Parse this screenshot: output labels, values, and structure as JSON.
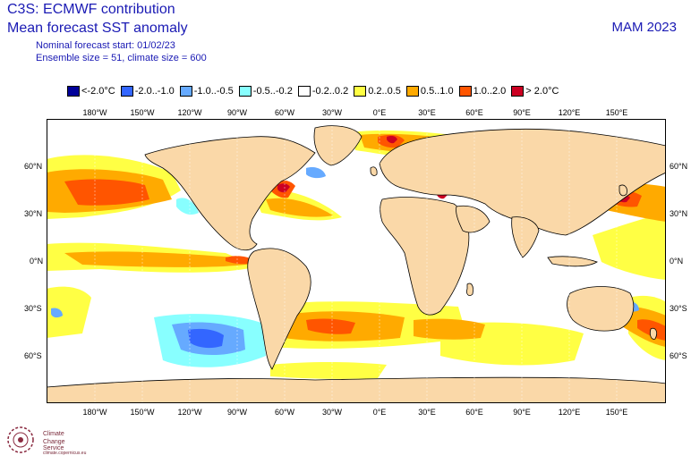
{
  "header": {
    "title": "C3S: ECMWF contribution",
    "subtitle": "Mean forecast SST anomaly",
    "start_line": "Nominal forecast start: 01/02/23",
    "ensemble_line": "Ensemble size = 51, climate size = 600",
    "season": "MAM 2023"
  },
  "legend": [
    {
      "label": "<-2.0°C",
      "color": "#000099"
    },
    {
      "label": "-2.0..-1.0",
      "color": "#3366ff"
    },
    {
      "label": "-1.0..-0.5",
      "color": "#66aaff"
    },
    {
      "label": "-0.5..-0.2",
      "color": "#88ffff"
    },
    {
      "label": "-0.2..0.2",
      "color": "#ffffff"
    },
    {
      "label": "0.2..0.5",
      "color": "#ffff44"
    },
    {
      "label": "0.5..1.0",
      "color": "#ffaa00"
    },
    {
      "label": "1.0..2.0",
      "color": "#ff5500"
    },
    {
      "label": "> 2.0°C",
      "color": "#cc0022"
    }
  ],
  "axes": {
    "lon_labels": [
      "180°W",
      "150°W",
      "120°W",
      "90°W",
      "60°W",
      "30°W",
      "0°E",
      "30°E",
      "60°E",
      "90°E",
      "120°E",
      "150°E"
    ],
    "lat_labels": [
      "60°N",
      "30°N",
      "0°N",
      "30°S",
      "60°S"
    ]
  },
  "colors": {
    "land": "#fad8a8",
    "coast": "#000000",
    "border": "#b0b0b0",
    "text": "#1a1ab4"
  },
  "logo": {
    "line1": "Climate",
    "line2": "Change Service",
    "line3": "climate.copernicus.eu"
  }
}
